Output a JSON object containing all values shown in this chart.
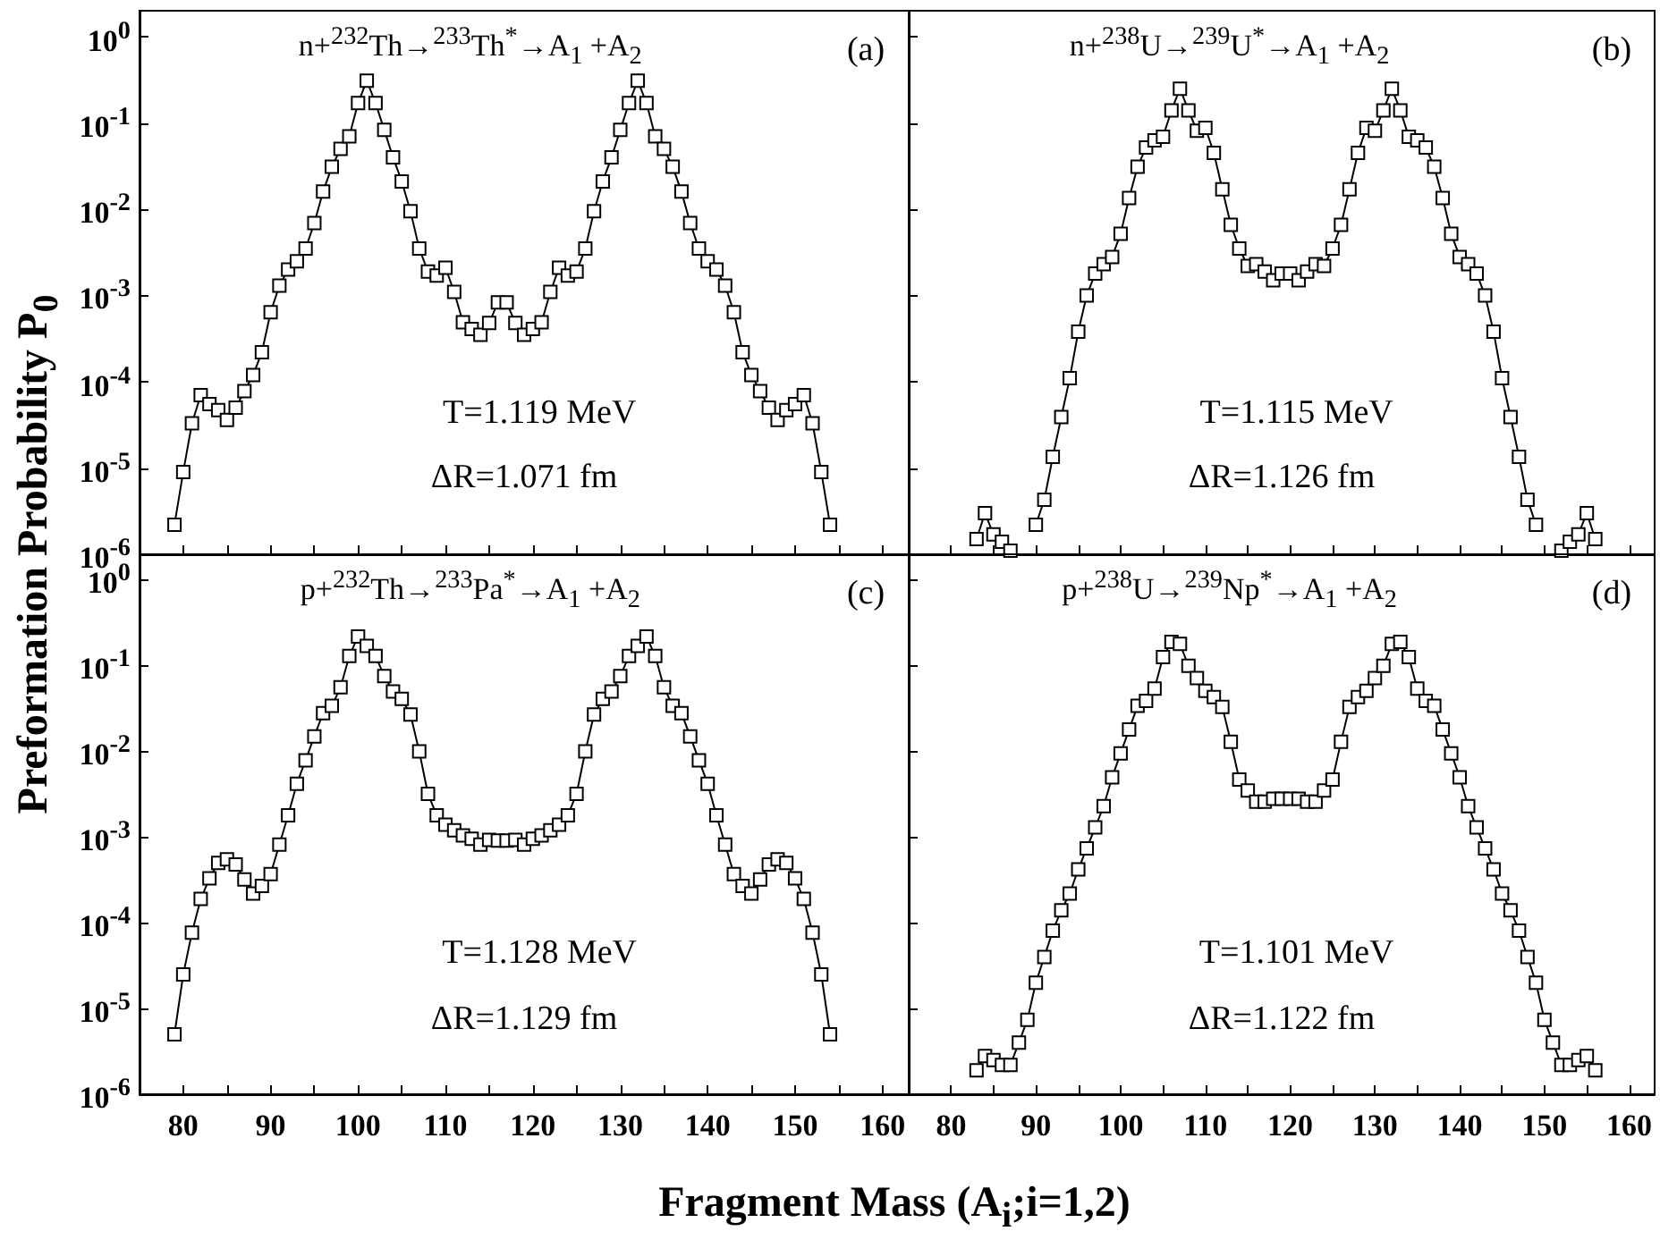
{
  "chart_data": [
    {
      "type": "line",
      "ylabel": "Preformation Probability P$_{0}$",
      "log": "y",
      "grid": false,
      "marker": "square",
      "line_style": "solid",
      "tick_labels": "y",
      "annotations": [
        "n+$^{232}$Th→$^{233}$Th$^{*}$→A$_{1}$ +A$_{2}$",
        "(a)",
        "T=1.119 MeV",
        "ΔR=1.071 fm"
      ],
      "xlim": [
        75,
        163
      ],
      "xticks": [
        {
          "value": 75,
          "label": null
        },
        80,
        {
          "value": 85,
          "label": null
        },
        90,
        {
          "value": 95,
          "label": null
        },
        100,
        {
          "value": 105,
          "label": null
        },
        110,
        {
          "value": 115,
          "label": null
        },
        120,
        {
          "value": 125,
          "label": null
        },
        130,
        {
          "value": 135,
          "label": null
        },
        140,
        {
          "value": 145,
          "label": null
        },
        150,
        {
          "value": 155,
          "label": null
        },
        160
      ],
      "ylim": [
        1e-06,
        2
      ],
      "yticks": [
        {
          "value": 1e-06,
          "label": "10$^{-6}$"
        },
        {
          "value": 1e-05,
          "label": "10$^{-5}$"
        },
        {
          "value": 0.0001,
          "label": "10$^{-4}$"
        },
        {
          "value": 0.001,
          "label": "10$^{-3}$"
        },
        {
          "value": 0.01,
          "label": "10$^{-2}$"
        },
        {
          "value": 0.1,
          "label": "10$^{-1}$"
        },
        {
          "value": 1,
          "label": "10$^{0}$"
        }
      ],
      "x": [
        79,
        80,
        81,
        82,
        83,
        84,
        85,
        86,
        87,
        88,
        89,
        90,
        91,
        92,
        93,
        94,
        95,
        96,
        97,
        98,
        99,
        100,
        101,
        102,
        103,
        104,
        105,
        106,
        107,
        108,
        109,
        110,
        111,
        112,
        113,
        114,
        115,
        116,
        117,
        118,
        119,
        120,
        121,
        122,
        123,
        124,
        125,
        126,
        127,
        128,
        129,
        130,
        131,
        132,
        133,
        134,
        135,
        136,
        137,
        138,
        139,
        140,
        141,
        142,
        143,
        144,
        145,
        146,
        147,
        148,
        149,
        150,
        151,
        152,
        153,
        154
      ],
      "series": [
        {
          "color": "#000000",
          "values": [
            2.2e-06,
            9e-06,
            3.3e-05,
            7e-05,
            5.5e-05,
            4.7e-05,
            3.6e-05,
            5e-05,
            7.8e-05,
            0.00012,
            0.00022,
            0.00064,
            0.0013,
            0.002,
            0.0025,
            0.0035,
            0.0069,
            0.016,
            0.031,
            0.05,
            0.07,
            0.17,
            0.31,
            0.17,
            0.083,
            0.04,
            0.021,
            0.0095,
            0.0035,
            0.0019,
            0.0017,
            0.0021,
            0.0011,
            0.00049,
            0.00041,
            0.00035,
            0.00048,
            0.00083,
            0.00083,
            0.00048,
            0.00035,
            0.00041,
            0.00049,
            0.0011,
            0.0021,
            0.0017,
            0.0019,
            0.0035,
            0.0095,
            0.021,
            0.04,
            0.083,
            0.17,
            0.31,
            0.17,
            0.07,
            0.05,
            0.031,
            0.016,
            0.0069,
            0.0035,
            0.0025,
            0.002,
            0.0013,
            0.00064,
            0.00022,
            0.00012,
            7.8e-05,
            5e-05,
            3.6e-05,
            4.7e-05,
            5.5e-05,
            7e-05,
            3.3e-05,
            9e-06,
            2.2e-06
          ]
        }
      ]
    },
    {
      "type": "line",
      "log": "y",
      "grid": false,
      "marker": "square",
      "line_style": "solid",
      "tick_labels": false,
      "annotations": [
        "n+$^{238}$U→$^{239}$U$^{*}$→A$_{1}$ +A$_{2}$",
        "(b)",
        "T=1.115 MeV",
        "ΔR=1.126 fm"
      ],
      "xlim": [
        75,
        163
      ],
      "xticks": [
        {
          "value": 75,
          "label": null
        },
        80,
        {
          "value": 85,
          "label": null
        },
        90,
        {
          "value": 95,
          "label": null
        },
        100,
        {
          "value": 105,
          "label": null
        },
        110,
        {
          "value": 115,
          "label": null
        },
        120,
        {
          "value": 125,
          "label": null
        },
        130,
        {
          "value": 135,
          "label": null
        },
        140,
        {
          "value": 145,
          "label": null
        },
        150,
        {
          "value": 155,
          "label": null
        },
        160
      ],
      "ylim": [
        1e-06,
        2
      ],
      "yticks": [
        {
          "value": 1e-06,
          "label": null
        },
        {
          "value": 1e-05,
          "label": null
        },
        {
          "value": 0.0001,
          "label": null
        },
        {
          "value": 0.001,
          "label": null
        },
        {
          "value": 0.01,
          "label": null
        },
        {
          "value": 0.1,
          "label": null
        },
        {
          "value": 1,
          "label": null
        }
      ],
      "x": [
        83,
        84,
        85,
        86,
        87,
        88,
        89,
        90,
        91,
        92,
        93,
        94,
        95,
        96,
        97,
        98,
        99,
        100,
        101,
        102,
        103,
        104,
        105,
        106,
        107,
        108,
        109,
        110,
        111,
        112,
        113,
        114,
        115,
        116,
        117,
        118,
        119,
        120,
        121,
        122,
        123,
        124,
        125,
        126,
        127,
        128,
        129,
        130,
        131,
        132,
        133,
        134,
        135,
        136,
        137,
        138,
        139,
        140,
        141,
        142,
        143,
        144,
        145,
        146,
        147,
        148,
        149,
        150,
        151,
        152,
        153,
        154,
        155,
        156
      ],
      "series": [
        {
          "color": "#000000",
          "values": [
            1.5e-06,
            3e-06,
            1.7e-06,
            1.4e-06,
            1.1e-06,
            null,
            null,
            2.2e-06,
            4.3e-06,
            1.35e-05,
            3.9e-05,
            0.00011,
            0.00038,
            0.001,
            0.0018,
            0.0023,
            0.0028,
            0.0052,
            0.0135,
            0.031,
            0.052,
            0.063,
            0.069,
            0.14,
            0.25,
            0.14,
            0.081,
            0.088,
            0.045,
            0.017,
            0.0066,
            0.0035,
            0.0022,
            0.0023,
            0.0019,
            0.0015,
            0.0018,
            0.0018,
            0.0015,
            0.0019,
            0.0023,
            0.0022,
            0.0035,
            0.0066,
            0.017,
            0.045,
            0.088,
            0.081,
            0.14,
            0.25,
            0.14,
            0.069,
            0.063,
            0.052,
            0.031,
            0.0135,
            0.0052,
            0.0028,
            0.0023,
            0.0018,
            0.001,
            0.00038,
            0.00011,
            3.9e-05,
            1.35e-05,
            4.3e-06,
            2.2e-06,
            null,
            null,
            1.1e-06,
            1.4e-06,
            1.7e-06,
            3e-06,
            1.5e-06
          ]
        }
      ]
    },
    {
      "type": "line",
      "xlabel": "Fragment Mass (A$_{i}$;i=1,2)",
      "log": "y",
      "grid": false,
      "marker": "square",
      "line_style": "solid",
      "annotations": [
        "p+$^{232}$Th→$^{233}$Pa$^{*}$→A$_{1}$ +A$_{2}$",
        "(c)",
        "T=1.128 MeV",
        "ΔR=1.129 fm"
      ],
      "xlim": [
        75,
        163
      ],
      "xticks": [
        {
          "value": 75,
          "label": null
        },
        80,
        {
          "value": 85,
          "label": null
        },
        90,
        {
          "value": 95,
          "label": null
        },
        100,
        {
          "value": 105,
          "label": null
        },
        110,
        {
          "value": 115,
          "label": null
        },
        120,
        {
          "value": 125,
          "label": null
        },
        130,
        {
          "value": 135,
          "label": null
        },
        140,
        {
          "value": 145,
          "label": null
        },
        150,
        {
          "value": 155,
          "label": null
        },
        160
      ],
      "ylim": [
        1e-06,
        2
      ],
      "yticks": [
        {
          "value": 1e-06,
          "label": "10$^{-6}$"
        },
        {
          "value": 1e-05,
          "label": "10$^{-5}$"
        },
        {
          "value": 0.0001,
          "label": "10$^{-4}$"
        },
        {
          "value": 0.001,
          "label": "10$^{-3}$"
        },
        {
          "value": 0.01,
          "label": "10$^{-2}$"
        },
        {
          "value": 0.1,
          "label": "10$^{-1}$"
        },
        {
          "value": 1,
          "label": "10$^{0}$"
        }
      ],
      "x": [
        79,
        80,
        81,
        82,
        83,
        84,
        85,
        86,
        87,
        88,
        89,
        90,
        91,
        92,
        93,
        94,
        95,
        96,
        97,
        98,
        99,
        100,
        101,
        102,
        103,
        104,
        105,
        106,
        107,
        108,
        109,
        110,
        111,
        112,
        113,
        114,
        115,
        116,
        117,
        118,
        119,
        120,
        121,
        122,
        123,
        124,
        125,
        126,
        127,
        128,
        129,
        130,
        131,
        132,
        133,
        134,
        135,
        136,
        137,
        138,
        139,
        140,
        141,
        142,
        143,
        144,
        145,
        146,
        147,
        148,
        149,
        150,
        151,
        152,
        153,
        154
      ],
      "series": [
        {
          "color": "#000000",
          "values": [
            5e-06,
            2.5e-05,
            7.7e-05,
            0.00019,
            0.00033,
            0.0005,
            0.00055,
            0.00048,
            0.00032,
            0.00022,
            0.00027,
            0.00037,
            0.00082,
            0.0018,
            0.0042,
            0.0079,
            0.015,
            0.028,
            0.034,
            0.056,
            0.13,
            0.22,
            0.17,
            0.13,
            0.076,
            0.05,
            0.041,
            0.027,
            0.01,
            0.0032,
            0.0018,
            0.0014,
            0.0012,
            0.00105,
            0.00096,
            0.00082,
            0.00093,
            0.00091,
            0.00091,
            0.00093,
            0.00082,
            0.00096,
            0.00105,
            0.0012,
            0.0014,
            0.0018,
            0.0032,
            0.01,
            0.027,
            0.041,
            0.05,
            0.076,
            0.13,
            0.17,
            0.22,
            0.13,
            0.056,
            0.034,
            0.028,
            0.015,
            0.0079,
            0.0042,
            0.0018,
            0.00082,
            0.00037,
            0.00027,
            0.00022,
            0.00032,
            0.00048,
            0.00055,
            0.0005,
            0.00033,
            0.00019,
            7.7e-05,
            2.5e-05,
            5e-06
          ]
        }
      ]
    },
    {
      "type": "line",
      "log": "y",
      "grid": false,
      "marker": "square",
      "line_style": "solid",
      "tick_labels": "x",
      "annotations": [
        "p+$^{238}$U→$^{239}$Np$^{*}$→A$_{1}$ +A$_{2}$",
        "(d)",
        "T=1.101 MeV",
        "ΔR=1.122 fm"
      ],
      "xlim": [
        75,
        163
      ],
      "xticks": [
        {
          "value": 75,
          "label": null
        },
        80,
        {
          "value": 85,
          "label": null
        },
        90,
        {
          "value": 95,
          "label": null
        },
        100,
        {
          "value": 105,
          "label": null
        },
        110,
        {
          "value": 115,
          "label": null
        },
        120,
        {
          "value": 125,
          "label": null
        },
        130,
        {
          "value": 135,
          "label": null
        },
        140,
        {
          "value": 145,
          "label": null
        },
        150,
        {
          "value": 155,
          "label": null
        },
        160
      ],
      "ylim": [
        1e-06,
        2
      ],
      "yticks": [
        {
          "value": 1e-06,
          "label": null
        },
        {
          "value": 1e-05,
          "label": null
        },
        {
          "value": 0.0001,
          "label": null
        },
        {
          "value": 0.001,
          "label": null
        },
        {
          "value": 0.01,
          "label": null
        },
        {
          "value": 0.1,
          "label": null
        },
        {
          "value": 1,
          "label": null
        }
      ],
      "x": [
        83,
        84,
        85,
        86,
        87,
        88,
        89,
        90,
        91,
        92,
        93,
        94,
        95,
        96,
        97,
        98,
        99,
        100,
        101,
        102,
        103,
        104,
        105,
        106,
        107,
        108,
        109,
        110,
        111,
        112,
        113,
        114,
        115,
        116,
        117,
        118,
        119,
        120,
        121,
        122,
        123,
        124,
        125,
        126,
        127,
        128,
        129,
        130,
        131,
        132,
        133,
        134,
        135,
        136,
        137,
        138,
        139,
        140,
        141,
        142,
        143,
        144,
        145,
        146,
        147,
        148,
        149,
        150,
        151,
        152,
        153,
        154,
        155,
        156
      ],
      "series": [
        {
          "color": "#000000",
          "values": [
            1.9e-06,
            2.8e-06,
            2.5e-06,
            2.2e-06,
            2.2e-06,
            4e-06,
            7.4e-06,
            2e-05,
            4e-05,
            8.1e-05,
            0.00014,
            0.00022,
            0.00042,
            0.00074,
            0.0013,
            0.0023,
            0.005,
            0.0095,
            0.018,
            0.034,
            0.039,
            0.054,
            0.126,
            0.19,
            0.18,
            0.1,
            0.072,
            0.051,
            0.043,
            0.033,
            0.013,
            0.0047,
            0.0035,
            0.0026,
            0.0026,
            0.0028,
            0.0028,
            0.0028,
            0.0028,
            0.0026,
            0.0026,
            0.0035,
            0.0047,
            0.013,
            0.033,
            0.043,
            0.051,
            0.072,
            0.1,
            0.18,
            0.19,
            0.126,
            0.054,
            0.039,
            0.034,
            0.018,
            0.0095,
            0.005,
            0.0023,
            0.0013,
            0.00074,
            0.00042,
            0.00022,
            0.00014,
            8.1e-05,
            4e-05,
            2e-05,
            7.4e-06,
            4e-06,
            2.2e-06,
            2.2e-06,
            2.5e-06,
            2.8e-06,
            1.9e-06
          ]
        }
      ]
    }
  ]
}
